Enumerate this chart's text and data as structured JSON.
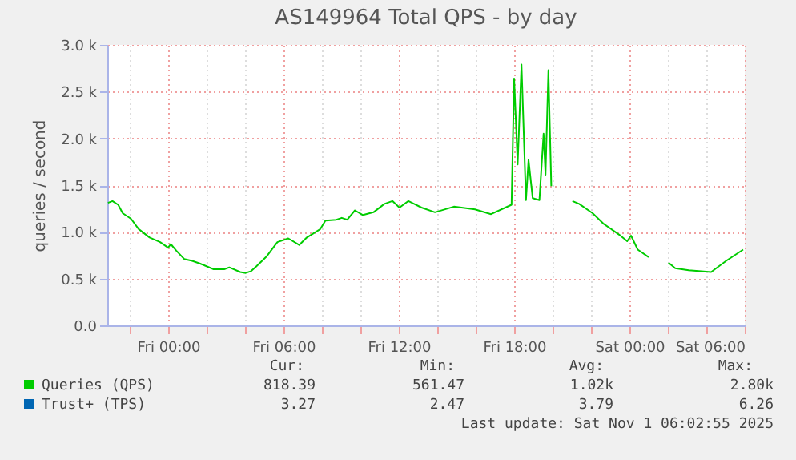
{
  "chart_data": {
    "type": "line",
    "title": "AS149964 Total QPS - by day",
    "ylabel": "queries / second",
    "x": [
      "2025-10-30T20:52",
      "2025-10-30T21:06",
      "2025-10-30T21:24",
      "2025-10-30T21:38",
      "2025-10-30T22:04",
      "2025-10-30T22:28",
      "2025-10-30T23:02",
      "2025-10-30T23:35",
      "2025-10-31T00:00",
      "2025-10-31T00:08",
      "2025-10-31T00:25",
      "2025-10-31T00:50",
      "2025-10-31T01:15",
      "2025-10-31T01:40",
      "2025-10-31T02:22",
      "2025-10-31T02:55",
      "2025-10-31T03:11",
      "2025-10-31T03:45",
      "2025-10-31T04:02",
      "2025-10-31T04:19",
      "2025-10-31T04:35",
      "2025-10-31T05:08",
      "2025-10-31T05:41",
      "2025-10-31T06:15",
      "2025-10-31T06:49",
      "2025-10-31T07:13",
      "2025-10-31T07:55",
      "2025-10-31T08:11",
      "2025-10-31T08:45",
      "2025-10-31T09:02",
      "2025-10-31T09:19",
      "2025-10-31T09:43",
      "2025-10-31T10:08",
      "2025-10-31T10:41",
      "2025-10-31T11:15",
      "2025-10-31T11:40",
      "2025-10-31T12:02",
      "2025-10-31T12:30",
      "2025-10-31T13:11",
      "2025-10-31T13:53",
      "2025-10-31T14:52",
      "2025-10-31T15:58",
      "2025-10-31T16:48",
      "2025-10-31T17:52",
      "2025-10-31T18:00",
      "2025-10-31T18:11",
      "2025-10-31T18:23",
      "2025-10-31T18:37",
      "2025-10-31T18:45",
      "2025-10-31T18:58",
      "2025-10-31T19:19",
      "2025-10-31T19:32",
      "2025-10-31T19:38",
      "2025-10-31T19:47",
      "2025-10-31T19:56",
      "2025-10-31T20:30",
      "2025-10-31T21:02",
      "2025-10-31T21:23",
      "2025-10-31T22:05",
      "2025-10-31T22:38",
      "2025-10-31T23:28",
      "2025-10-31T23:53",
      "2025-11-01T00:05",
      "2025-11-01T00:26",
      "2025-11-01T01:00",
      "2025-11-01T01:30",
      "2025-11-01T02:02",
      "2025-11-01T02:23",
      "2025-11-01T03:05",
      "2025-11-01T04:15",
      "2025-11-01T05:02",
      "2025-11-01T05:55"
    ],
    "series": [
      {
        "name": "Queries (QPS)",
        "color": "#00cc00",
        "values": [
          1310,
          1330,
          1290,
          1200,
          1140,
          1030,
          940,
          890,
          830,
          870,
          800,
          710,
          690,
          660,
          600,
          600,
          620,
          570,
          560,
          580,
          630,
          740,
          890,
          930,
          860,
          940,
          1030,
          1120,
          1130,
          1150,
          1130,
          1230,
          1180,
          1210,
          1300,
          1330,
          1260,
          1330,
          1260,
          1210,
          1270,
          1240,
          1190,
          1290,
          2640,
          1720,
          2790,
          1340,
          1770,
          1360,
          1340,
          2050,
          1610,
          2730,
          1490,
          null,
          1330,
          1300,
          1200,
          1090,
          970,
          900,
          960,
          810,
          730,
          null,
          670,
          610,
          590,
          570,
          690,
          810
        ]
      },
      {
        "name": "Trust+ (TPS)",
        "color": "#0066b3",
        "values": [
          null,
          null,
          null,
          null,
          null,
          null,
          null,
          null,
          null,
          null,
          null,
          null,
          null,
          null,
          null,
          null,
          null,
          null,
          null,
          null,
          null,
          null,
          null,
          null,
          null,
          null,
          null,
          null,
          null,
          null,
          null,
          null,
          null,
          null,
          null,
          null,
          null,
          null,
          null,
          null,
          null,
          null,
          null,
          null,
          null,
          null,
          null,
          null,
          null,
          null,
          null,
          null,
          null,
          null,
          null,
          null,
          null,
          null,
          null,
          null,
          null,
          null,
          null,
          null,
          null,
          null,
          null,
          null,
          null,
          null,
          null,
          null
        ]
      }
    ],
    "xlim": [
      "2025-10-30T20:50",
      "2025-11-01T06:00"
    ],
    "xticks": [
      {
        "value": "2025-10-30T22:00",
        "label": null
      },
      {
        "value": "2025-10-31T00:00",
        "label": "Fri 00:00"
      },
      {
        "value": "2025-10-31T02:00",
        "label": null
      },
      {
        "value": "2025-10-31T04:00",
        "label": null
      },
      {
        "value": "2025-10-31T06:00",
        "label": "Fri 06:00"
      },
      {
        "value": "2025-10-31T08:00",
        "label": null
      },
      {
        "value": "2025-10-31T10:00",
        "label": null
      },
      {
        "value": "2025-10-31T12:00",
        "label": "Fri 12:00"
      },
      {
        "value": "2025-10-31T14:00",
        "label": null
      },
      {
        "value": "2025-10-31T16:00",
        "label": null
      },
      {
        "value": "2025-10-31T18:00",
        "label": "Fri 18:00"
      },
      {
        "value": "2025-10-31T20:00",
        "label": null
      },
      {
        "value": "2025-10-31T22:00",
        "label": null
      },
      {
        "value": "2025-11-01T00:00",
        "label": "Sat 00:00"
      },
      {
        "value": "2025-11-01T02:00",
        "label": null
      },
      {
        "value": "2025-11-01T04:00",
        "label": null
      },
      {
        "value": "2025-11-01T06:00",
        "label": "Sat 06:00"
      }
    ],
    "ylim": [
      0,
      3000
    ],
    "yticks": [
      {
        "value": 0,
        "label": "0.0"
      },
      {
        "value": 500,
        "label": "0.5 k"
      },
      {
        "value": 1000,
        "label": "1.0 k"
      },
      {
        "value": 1500,
        "label": "1.5 k"
      },
      {
        "value": 2000,
        "label": "2.0 k"
      },
      {
        "value": 2500,
        "label": "2.5 k"
      },
      {
        "value": 3000,
        "label": "3.0 k"
      }
    ],
    "grid": true,
    "legend": "bottom",
    "annotations": [
      "Cur:",
      "Min:",
      "Avg:",
      "Max:",
      "818.39",
      "561.47",
      "1.02k",
      "2.80k",
      "3.27",
      "2.47",
      "3.79",
      "6.26",
      "Last update: Sat Nov  1 06:02:55 2025"
    ]
  }
}
